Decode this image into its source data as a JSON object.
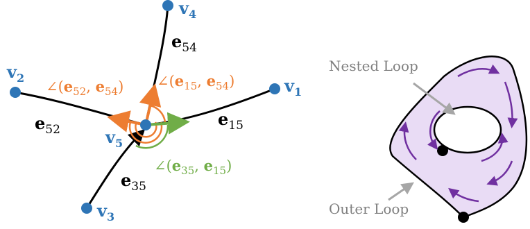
{
  "left_graph": {
    "vertices": [
      {
        "id": "v4",
        "label": "v",
        "sub": "4"
      },
      {
        "id": "v2",
        "label": "v",
        "sub": "2"
      },
      {
        "id": "v1",
        "label": "v",
        "sub": "1"
      },
      {
        "id": "v5",
        "label": "v",
        "sub": "5"
      },
      {
        "id": "v3",
        "label": "v",
        "sub": "3"
      }
    ],
    "edges": [
      {
        "id": "e54",
        "label": "e",
        "sub": "54"
      },
      {
        "id": "e52",
        "label": "e",
        "sub": "52"
      },
      {
        "id": "e15",
        "label": "e",
        "sub": "15"
      },
      {
        "id": "e35",
        "label": "e",
        "sub": "35"
      }
    ],
    "angles": [
      {
        "id": "a5254",
        "prefix": "∠(",
        "e1": "e",
        "s1": "52",
        "sep": ", ",
        "e2": "e",
        "s2": "54",
        "suffix": ")"
      },
      {
        "id": "a1554",
        "prefix": "∠(",
        "e1": "e",
        "s1": "15",
        "sep": ", ",
        "e2": "e",
        "s2": "54",
        "suffix": ")"
      },
      {
        "id": "a3515",
        "prefix": "∠(",
        "e1": "e",
        "s1": "35",
        "sep": ", ",
        "e2": "e",
        "s2": "15",
        "suffix": ")"
      }
    ]
  },
  "right_diagram": {
    "nested_loop_label": "Nested Loop",
    "outer_loop_label": "Outer Loop"
  },
  "colors": {
    "vertex": "#2e75b6",
    "orange": "#ed7d31",
    "green": "#70ad47",
    "purple": "#7030a0",
    "fill": "#e9dcf5",
    "grey": "#999999"
  }
}
